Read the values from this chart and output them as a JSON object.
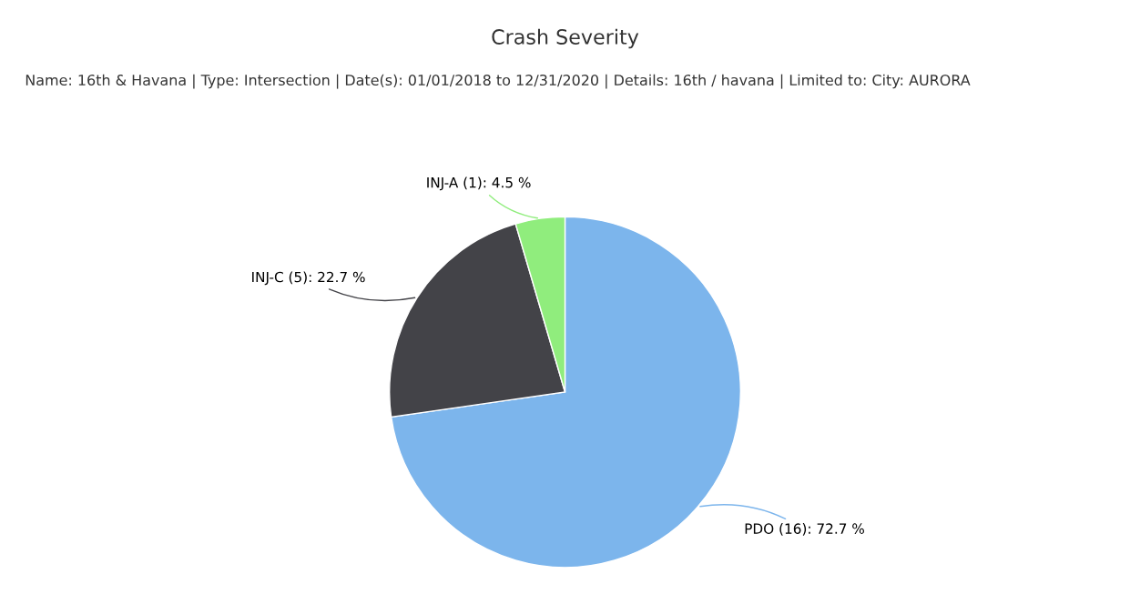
{
  "chart_data": {
    "type": "pie",
    "title": "Crash Severity",
    "subtitle": "Name: 16th & Havana | Type: Intersection | Date(s): 01/01/2018 to 12/31/2020 | Details: 16th / havana | Limited to: City: AURORA",
    "categories": [
      "PDO",
      "INJ-C",
      "INJ-A"
    ],
    "values": [
      16,
      5,
      1
    ],
    "colors": [
      "#7cb5ec",
      "#434348",
      "#90ed7d"
    ],
    "value_labels": [
      "(16): 72.7 %",
      "(5): 22.7 %",
      "(1): 4.5 %"
    ],
    "legend": false
  }
}
